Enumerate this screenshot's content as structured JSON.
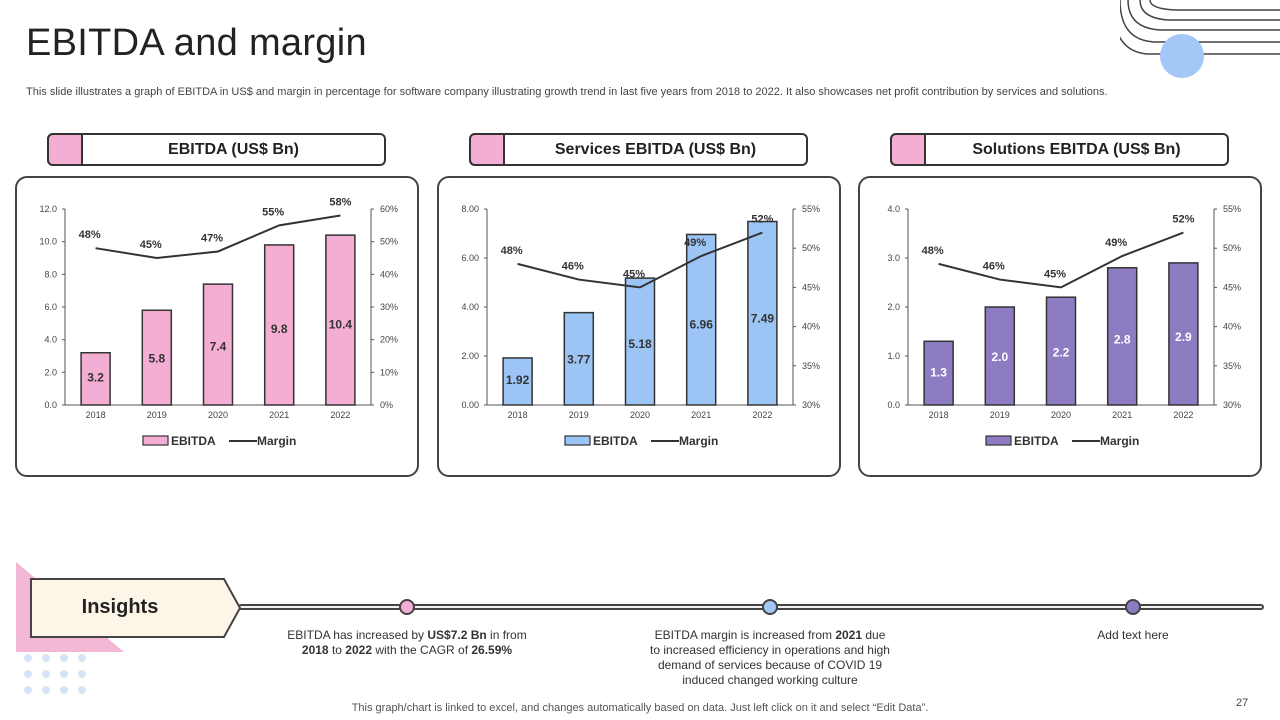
{
  "title": "EBITDA and margin",
  "subtitle": "This slide illustrates a graph of EBITDA  in US$ and margin in percentage for software company illustrating growth trend in last five years from 2018 to 2022. It also showcases net profit contribution by services and solutions.",
  "colors": {
    "pink": "#f5aed3",
    "blue": "#9cc5f5",
    "purple": "#8e7cc3",
    "accent_circle": "#a3c8f7",
    "insights_bg": "#fdf6e8"
  },
  "chart_data": [
    {
      "type": "bar",
      "header": "EBITDA (US$ Bn)",
      "categories": [
        "2018",
        "2019",
        "2020",
        "2021",
        "2022"
      ],
      "series": [
        {
          "name": "EBITDA",
          "values": [
            3.2,
            5.8,
            7.4,
            9.8,
            10.4
          ],
          "labels": [
            "3.2",
            "5.8",
            "7.4",
            "9.8",
            "10.4"
          ]
        },
        {
          "name": "Margin",
          "type": "line",
          "values": [
            48,
            45,
            47,
            55,
            58
          ],
          "labels": [
            "48%",
            "45%",
            "47%",
            "55%",
            "58%"
          ]
        }
      ],
      "ylim": [
        0,
        12
      ],
      "yticks": [
        "0.0",
        "2.0",
        "4.0",
        "6.0",
        "8.0",
        "10.0",
        "12.0"
      ],
      "y2lim": [
        0,
        60
      ],
      "y2ticks": [
        "0%",
        "10%",
        "20%",
        "30%",
        "40%",
        "50%",
        "60%"
      ],
      "legend": [
        "EBITDA",
        "Margin"
      ],
      "color": "#f5aed3"
    },
    {
      "type": "bar",
      "header": "Services EBITDA (US$ Bn)",
      "categories": [
        "2018",
        "2019",
        "2020",
        "2021",
        "2022"
      ],
      "series": [
        {
          "name": "EBITDA",
          "values": [
            1.92,
            3.77,
            5.18,
            6.96,
            7.49
          ],
          "labels": [
            "1.92",
            "3.77",
            "5.18",
            "6.96",
            "7.49"
          ]
        },
        {
          "name": "Margin",
          "type": "line",
          "values": [
            48,
            46,
            45,
            49,
            52
          ],
          "labels": [
            "48%",
            "46%",
            "45%",
            "49%",
            "52%"
          ]
        }
      ],
      "ylim": [
        0,
        8
      ],
      "yticks": [
        "0.00",
        "2.00",
        "4.00",
        "6.00",
        "8.00"
      ],
      "y2lim": [
        30,
        55
      ],
      "y2ticks": [
        "30%",
        "35%",
        "40%",
        "45%",
        "50%",
        "55%"
      ],
      "legend": [
        "EBITDA",
        "Margin"
      ],
      "color": "#9cc5f5"
    },
    {
      "type": "bar",
      "header": "Solutions EBITDA (US$ Bn)",
      "categories": [
        "2018",
        "2019",
        "2020",
        "2021",
        "2022"
      ],
      "series": [
        {
          "name": "EBITDA",
          "values": [
            1.3,
            2.0,
            2.2,
            2.8,
            2.9
          ],
          "labels": [
            "1.3",
            "2.0",
            "2.2",
            "2.8",
            "2.9"
          ]
        },
        {
          "name": "Margin",
          "type": "line",
          "values": [
            48,
            46,
            45,
            49,
            52
          ],
          "labels": [
            "48%",
            "46%",
            "45%",
            "49%",
            "52%"
          ]
        }
      ],
      "ylim": [
        0,
        4
      ],
      "yticks": [
        "0.0",
        "1.0",
        "2.0",
        "3.0",
        "4.0"
      ],
      "y2lim": [
        30,
        55
      ],
      "y2ticks": [
        "30%",
        "35%",
        "40%",
        "45%",
        "50%",
        "55%"
      ],
      "legend": [
        "EBITDA",
        "Margin"
      ],
      "color": "#8e7cc3"
    }
  ],
  "insights": {
    "label": "Insights",
    "items": [
      {
        "parts": [
          "EBITDA  has increased by ",
          "US$7.2 Bn",
          "  in from ",
          "2018",
          " to ",
          "2022",
          " with the CAGR  of ",
          "26.59%"
        ]
      },
      {
        "parts": [
          "EBITDA  margin is increased from ",
          "2021",
          " due to increased efficiency in operations and high demand of services because of COVID 19 induced changed working culture"
        ]
      },
      {
        "parts": [
          "Add text here"
        ]
      }
    ]
  },
  "footer": "This graph/chart is linked to excel,  and changes automatically based on data. Just left click on it and select “Edit Data”.",
  "page_number": "27"
}
